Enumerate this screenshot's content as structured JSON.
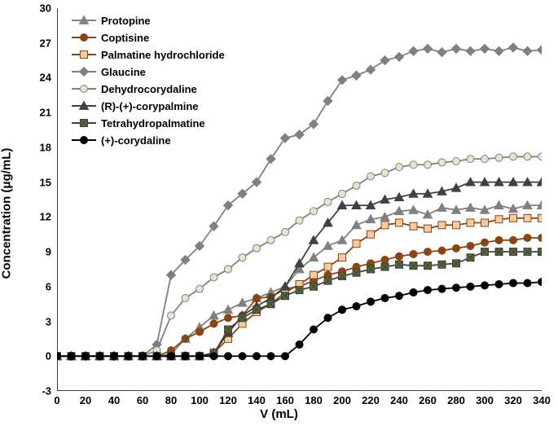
{
  "chart": {
    "type": "line",
    "xlabel": "V (mL)",
    "ylabel": "Concentration  (μg/mL)",
    "label_fontsize": 15,
    "tick_fontsize": 13,
    "background_color": "#ffffff",
    "axis_color": "#000000",
    "xlim": [
      0,
      340
    ],
    "ylim": [
      -3,
      30
    ],
    "ytick_step": 3,
    "xtick_step": 20,
    "x_values": [
      0,
      10,
      20,
      30,
      40,
      50,
      60,
      70,
      80,
      90,
      100,
      110,
      120,
      130,
      140,
      150,
      160,
      170,
      180,
      190,
      200,
      210,
      220,
      230,
      240,
      250,
      260,
      270,
      280,
      290,
      300,
      310,
      320,
      330,
      340
    ],
    "x_plot_step": 10,
    "series": [
      {
        "name": "Protopine",
        "marker": "triangle",
        "color": "#808080",
        "fill": "#808080",
        "y": [
          0,
          0,
          0,
          0,
          0,
          0,
          0,
          0,
          0.2,
          1.5,
          2.5,
          3.5,
          4.0,
          4.6,
          5.0,
          5.5,
          6.0,
          7.5,
          8.5,
          9.5,
          10.0,
          11.3,
          11.8,
          12.0,
          12.5,
          12.6,
          12.2,
          12.8,
          12.6,
          12.8,
          12.6,
          13.0,
          12.7,
          13.0,
          13.0
        ]
      },
      {
        "name": "Coptisine",
        "marker": "circle",
        "color": "#8b4513",
        "fill": "#8b4513",
        "y": [
          0,
          0,
          0,
          0,
          0,
          0,
          0,
          0,
          0.5,
          1.5,
          2.1,
          2.8,
          3.3,
          3.5,
          5.0,
          5.1,
          5.8,
          6.0,
          6.5,
          7.0,
          7.3,
          7.7,
          8.0,
          8.3,
          8.6,
          8.8,
          9.0,
          9.1,
          9.3,
          9.5,
          9.8,
          10.0,
          10.0,
          10.2,
          10.2
        ]
      },
      {
        "name": "Palmatine hydrochloride",
        "marker": "square",
        "color": "#8b4513",
        "fill": "#f7cba0",
        "y": [
          0,
          0,
          0,
          0,
          0,
          0,
          0,
          0,
          0,
          0,
          0,
          0.3,
          1.5,
          2.8,
          3.8,
          4.5,
          5.5,
          6.2,
          7.0,
          7.7,
          8.5,
          9.7,
          10.5,
          11.3,
          11.5,
          11.2,
          11.0,
          11.3,
          11.3,
          11.5,
          11.5,
          11.8,
          11.9,
          11.9,
          11.9
        ]
      },
      {
        "name": "Glaucine",
        "marker": "diamond",
        "color": "#808080",
        "fill": "#808080",
        "y": [
          0,
          0,
          0,
          0,
          0,
          0,
          0,
          1.0,
          7.0,
          8.3,
          9.5,
          11.2,
          13.0,
          14.0,
          15.0,
          17.0,
          18.8,
          19.1,
          20.0,
          22.0,
          23.8,
          24.2,
          24.7,
          25.5,
          25.8,
          26.3,
          26.5,
          26.2,
          26.5,
          26.3,
          26.5,
          26.3,
          26.6,
          26.3,
          26.4
        ]
      },
      {
        "name": "Dehydrocorydaline",
        "marker": "circle",
        "color": "#808080",
        "fill": "#e8e4c9",
        "y": [
          0,
          0,
          0,
          0,
          0,
          0,
          0,
          0.5,
          3.5,
          5.0,
          5.8,
          6.8,
          7.5,
          8.5,
          9.3,
          10.0,
          10.7,
          11.7,
          12.5,
          13.3,
          14.0,
          14.7,
          15.5,
          15.8,
          16.3,
          16.5,
          16.5,
          16.7,
          16.8,
          17.0,
          17.0,
          17.1,
          17.2,
          17.2,
          17.2
        ]
      },
      {
        "name": "(R)-(+)-corypalmine",
        "marker": "triangle",
        "color": "#404040",
        "fill": "#404040",
        "y": [
          0,
          0,
          0,
          0,
          0,
          0,
          0,
          0,
          0,
          0,
          0,
          0.3,
          2.0,
          3.5,
          4.3,
          5.0,
          6.0,
          8.0,
          10.0,
          11.5,
          13.0,
          13.0,
          13.0,
          13.5,
          13.7,
          14.0,
          14.0,
          14.2,
          14.5,
          15.0,
          15.0,
          15.0,
          15.0,
          15.0,
          15.0
        ]
      },
      {
        "name": "Tetrahydropalmatine",
        "marker": "square",
        "color": "#404040",
        "fill": "#556b2f",
        "x_marker": true,
        "y": [
          0,
          0,
          0,
          0,
          0,
          0,
          0,
          0,
          0,
          0,
          0,
          0.2,
          2.3,
          3.3,
          4.0,
          4.5,
          5.2,
          5.7,
          6.0,
          6.5,
          6.9,
          7.2,
          7.5,
          7.7,
          7.9,
          7.8,
          7.8,
          7.9,
          8.0,
          8.5,
          9.0,
          9.0,
          9.0,
          9.0,
          9.0
        ]
      },
      {
        "name": "(+)-corydaline",
        "marker": "circle",
        "color": "#000000",
        "fill": "#000000",
        "y": [
          0,
          0,
          0,
          0,
          0,
          0,
          0,
          0,
          0,
          0,
          0,
          0,
          0,
          0,
          0,
          0,
          0,
          1.0,
          2.3,
          3.3,
          4.0,
          4.3,
          4.7,
          5.0,
          5.2,
          5.5,
          5.7,
          5.8,
          5.9,
          6.0,
          6.1,
          6.2,
          6.3,
          6.3,
          6.4
        ]
      }
    ]
  }
}
